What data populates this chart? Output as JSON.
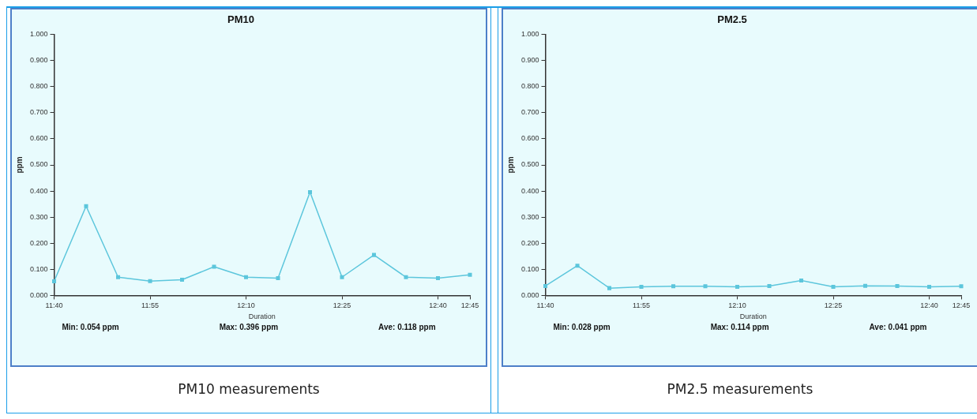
{
  "chart_data": [
    {
      "type": "line",
      "title": "PM10",
      "xlabel": "Duration",
      "ylabel": "ppm",
      "categories": [
        "11:40",
        null,
        null,
        "11:55",
        null,
        null,
        "12:10",
        null,
        null,
        "12:25",
        null,
        null,
        "12:40",
        "12:45"
      ],
      "series": [
        {
          "color": "#5cc6dc",
          "values": [
            0.054,
            0.342,
            0.07,
            0.055,
            0.06,
            0.11,
            0.07,
            0.066,
            0.396,
            0.07,
            0.155,
            0.07,
            0.066,
            0.079
          ]
        }
      ],
      "ylim": [
        0,
        1
      ],
      "yticks": [
        {
          "value": 0,
          "label": "0.000"
        },
        {
          "value": 0.1,
          "label": "0.100"
        },
        {
          "value": 0.2,
          "label": "0.200"
        },
        {
          "value": 0.3,
          "label": "0.300"
        },
        {
          "value": 0.4,
          "label": "0.400"
        },
        {
          "value": 0.5,
          "label": "0.500"
        },
        {
          "value": 0.6,
          "label": "0.600"
        },
        {
          "value": 0.7,
          "label": "0.700"
        },
        {
          "value": 0.8,
          "label": "0.800"
        },
        {
          "value": 0.9,
          "label": "0.900"
        },
        {
          "value": 1,
          "label": "1.000"
        }
      ],
      "grid": false,
      "legend": false,
      "marker": "square",
      "line_style": "solid",
      "annotations": [
        "Min: 0.054 ppm",
        "Max: 0.396 ppm",
        "Ave: 0.118 ppm",
        "PM10 measurements"
      ]
    },
    {
      "type": "line",
      "title": "PM2.5",
      "xlabel": "Duration",
      "ylabel": "ppm",
      "categories": [
        "11:40",
        null,
        null,
        "11:55",
        null,
        null,
        "12:10",
        null,
        null,
        "12:25",
        null,
        null,
        "12:40",
        "12:45"
      ],
      "series": [
        {
          "color": "#5cc6dc",
          "values": [
            0.036,
            0.114,
            0.028,
            0.033,
            0.035,
            0.035,
            0.033,
            0.036,
            0.057,
            0.033,
            0.037,
            0.036,
            0.033,
            0.035
          ]
        }
      ],
      "ylim": [
        0,
        1
      ],
      "yticks": [
        {
          "value": 0,
          "label": "0.000"
        },
        {
          "value": 0.1,
          "label": "0.100"
        },
        {
          "value": 0.2,
          "label": "0.200"
        },
        {
          "value": 0.3,
          "label": "0.300"
        },
        {
          "value": 0.4,
          "label": "0.400"
        },
        {
          "value": 0.5,
          "label": "0.500"
        },
        {
          "value": 0.6,
          "label": "0.600"
        },
        {
          "value": 0.7,
          "label": "0.700"
        },
        {
          "value": 0.8,
          "label": "0.800"
        },
        {
          "value": 0.9,
          "label": "0.900"
        },
        {
          "value": 1,
          "label": "1.000"
        }
      ],
      "grid": false,
      "legend": false,
      "marker": "square",
      "line_style": "solid",
      "annotations": [
        "Min: 0.028 ppm",
        "Max: 0.114 ppm",
        "Ave: 0.041 ppm",
        "PM2.5 measurements"
      ]
    }
  ]
}
